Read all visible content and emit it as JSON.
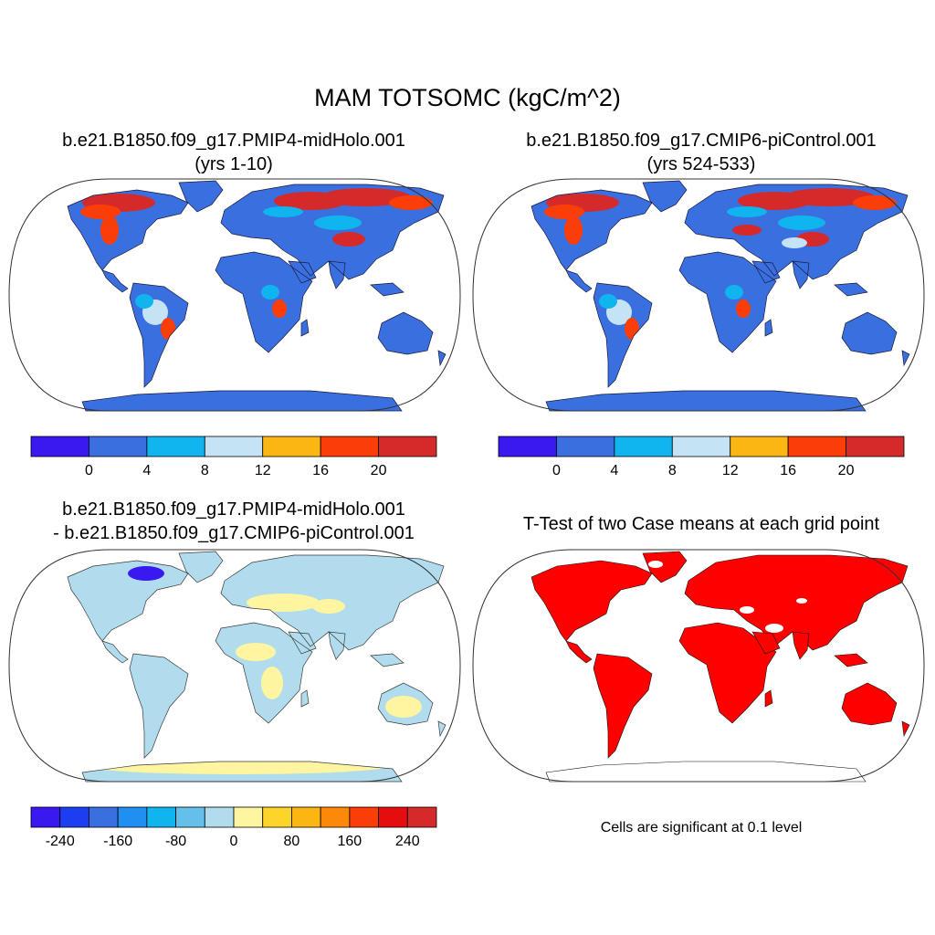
{
  "title": "MAM TOTSOMC (kgC/m^2)",
  "panels": {
    "top_left": {
      "title_line1": "b.e21.B1850.f09_g17.PMIP4-midHolo.001",
      "title_line2": "(yrs 1-10)"
    },
    "top_right": {
      "title_line1": "b.e21.B1850.f09_g17.CMIP6-piControl.001",
      "title_line2": "(yrs 524-533)"
    },
    "bottom_left": {
      "title_line1": "b.e21.B1850.f09_g17.PMIP4-midHolo.001",
      "title_line2": "- b.e21.B1850.f09_g17.CMIP6-piControl.001"
    },
    "bottom_right": {
      "title_line1": "T-Test of two Case means at each grid point",
      "note": "Cells are significant at 0.1 level"
    }
  },
  "colorbar_abs": {
    "colors": [
      "#3a18f0",
      "#3a6fe0",
      "#10b4ee",
      "#c4e4f6",
      "#fbb614",
      "#fb3d08",
      "#d42a2a"
    ],
    "tick_labels": [
      "0",
      "4",
      "8",
      "12",
      "16",
      "20"
    ]
  },
  "colorbar_diff": {
    "colors": [
      "#3a18f0",
      "#1a3ef0",
      "#3a6fe0",
      "#2090f0",
      "#10b4ee",
      "#64c0ea",
      "#b0dcee",
      "#fff5a0",
      "#fcd42a",
      "#fbb614",
      "#fb8a0a",
      "#fb3d08",
      "#e40e0e",
      "#d42a2a"
    ],
    "tick_labels": [
      "-240",
      "-160",
      "-80",
      "0",
      "80",
      "160",
      "240"
    ]
  },
  "map_colors": {
    "ocean": "#ffffff",
    "abs_land": "#3a6fe0",
    "abs_high": "#d42a2a",
    "abs_orange": "#fb3d08",
    "abs_light": "#10b4ee",
    "abs_pale": "#c4e4f6",
    "diff_land": "#b0dcee",
    "diff_pos": "#fff5a0",
    "diff_neg": "#3a18f0",
    "sig": "#ff0000"
  }
}
